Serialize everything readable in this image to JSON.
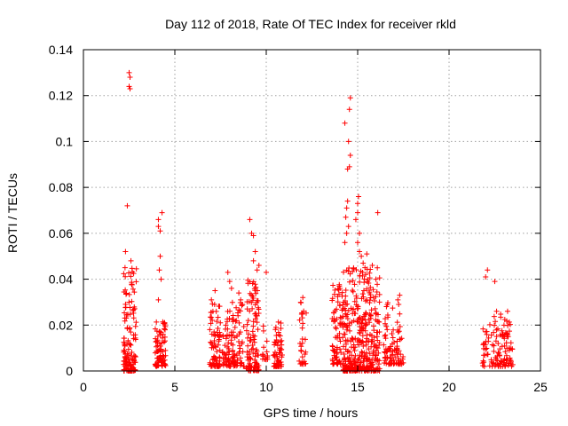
{
  "chart_data": {
    "type": "scatter",
    "title": "Day 112 of 2018, Rate Of TEC Index for receiver rkld",
    "xlabel": "GPS time / hours",
    "ylabel": "ROTI / TECUs",
    "xlim": [
      0,
      25
    ],
    "ylim": [
      0,
      0.14
    ],
    "xticks": [
      0,
      5,
      10,
      15,
      20,
      25
    ],
    "xtick_labels": [
      "0",
      "5",
      "10",
      "15",
      "20",
      "25"
    ],
    "yticks": [
      0,
      0.02,
      0.04,
      0.06,
      0.08,
      0.1,
      0.12,
      0.14
    ],
    "ytick_labels": [
      "0",
      "0.02",
      "0.04",
      "0.06",
      "0.08",
      "0.1",
      "0.12",
      "0.14"
    ],
    "grid": true,
    "marker": "+",
    "color": "#ff0000",
    "clusters": [
      {
        "x_range": [
          2.2,
          2.9
        ],
        "y_range": [
          0.0,
          0.045
        ],
        "count": 140
      },
      {
        "x_range": [
          3.9,
          4.5
        ],
        "y_range": [
          0.002,
          0.022
        ],
        "count": 80
      },
      {
        "x_range": [
          6.9,
          7.5
        ],
        "y_range": [
          0.002,
          0.03
        ],
        "count": 80
      },
      {
        "x_range": [
          7.6,
          8.8
        ],
        "y_range": [
          0.002,
          0.03
        ],
        "count": 120
      },
      {
        "x_range": [
          8.9,
          9.6
        ],
        "y_range": [
          0.0,
          0.04
        ],
        "count": 110
      },
      {
        "x_range": [
          9.8,
          10.1
        ],
        "y_range": [
          0.005,
          0.025
        ],
        "count": 15
      },
      {
        "x_range": [
          10.4,
          10.9
        ],
        "y_range": [
          0.002,
          0.022
        ],
        "count": 60
      },
      {
        "x_range": [
          11.8,
          12.2
        ],
        "y_range": [
          0.003,
          0.032
        ],
        "count": 30
      },
      {
        "x_range": [
          13.6,
          14.2
        ],
        "y_range": [
          0.003,
          0.04
        ],
        "count": 80
      },
      {
        "x_range": [
          14.2,
          16.2
        ],
        "y_range": [
          0.0,
          0.045
        ],
        "count": 380
      },
      {
        "x_range": [
          16.4,
          17.5
        ],
        "y_range": [
          0.003,
          0.03
        ],
        "count": 90
      },
      {
        "x_range": [
          21.8,
          22.4
        ],
        "y_range": [
          0.002,
          0.022
        ],
        "count": 30
      },
      {
        "x_range": [
          22.4,
          23.5
        ],
        "y_range": [
          0.002,
          0.025
        ],
        "count": 90
      }
    ],
    "outliers": [
      [
        2.5,
        0.13
      ],
      [
        2.55,
        0.128
      ],
      [
        2.5,
        0.124
      ],
      [
        2.55,
        0.123
      ],
      [
        2.4,
        0.072
      ],
      [
        2.3,
        0.052
      ],
      [
        2.6,
        0.048
      ],
      [
        4.1,
        0.066
      ],
      [
        4.3,
        0.069
      ],
      [
        4.1,
        0.063
      ],
      [
        4.2,
        0.061
      ],
      [
        4.2,
        0.05
      ],
      [
        4.15,
        0.044
      ],
      [
        4.25,
        0.04
      ],
      [
        4.1,
        0.031
      ],
      [
        7.0,
        0.031
      ],
      [
        7.2,
        0.035
      ],
      [
        7.9,
        0.043
      ],
      [
        8.0,
        0.039
      ],
      [
        8.1,
        0.036
      ],
      [
        8.5,
        0.034
      ],
      [
        8.6,
        0.031
      ],
      [
        9.1,
        0.066
      ],
      [
        9.2,
        0.06
      ],
      [
        9.3,
        0.059
      ],
      [
        9.4,
        0.052
      ],
      [
        9.3,
        0.048
      ],
      [
        9.5,
        0.044
      ],
      [
        9.6,
        0.046
      ],
      [
        10.0,
        0.043
      ],
      [
        12.0,
        0.032
      ],
      [
        14.0,
        0.037
      ],
      [
        14.3,
        0.056
      ],
      [
        14.4,
        0.06
      ],
      [
        14.5,
        0.063
      ],
      [
        14.35,
        0.067
      ],
      [
        14.4,
        0.071
      ],
      [
        14.45,
        0.074
      ],
      [
        14.6,
        0.119
      ],
      [
        14.55,
        0.114
      ],
      [
        14.5,
        0.1
      ],
      [
        14.6,
        0.094
      ],
      [
        14.55,
        0.089
      ],
      [
        14.45,
        0.088
      ],
      [
        14.3,
        0.108
      ],
      [
        14.9,
        0.066
      ],
      [
        15.0,
        0.069
      ],
      [
        15.0,
        0.073
      ],
      [
        15.05,
        0.076
      ],
      [
        15.1,
        0.06
      ],
      [
        15.0,
        0.056
      ],
      [
        15.1,
        0.052
      ],
      [
        15.2,
        0.05
      ],
      [
        15.3,
        0.047
      ],
      [
        15.5,
        0.051
      ],
      [
        15.4,
        0.045
      ],
      [
        15.8,
        0.046
      ],
      [
        16.1,
        0.069
      ],
      [
        16.0,
        0.04
      ],
      [
        17.3,
        0.033
      ],
      [
        17.2,
        0.031
      ],
      [
        22.1,
        0.044
      ],
      [
        22.0,
        0.041
      ],
      [
        22.5,
        0.039
      ],
      [
        22.6,
        0.026
      ],
      [
        23.2,
        0.026
      ]
    ]
  }
}
